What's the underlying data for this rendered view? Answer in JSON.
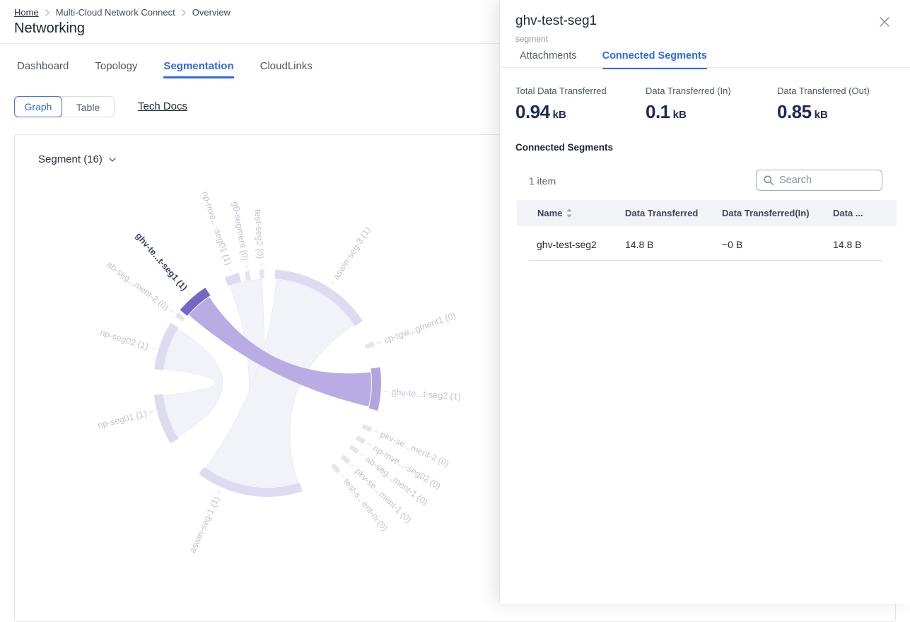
{
  "header": {
    "breadcrumb": [
      "Home",
      "Multi-Cloud Network Connect",
      "Overview"
    ],
    "title": "Networking"
  },
  "nav_tabs": [
    {
      "label": "Dashboard",
      "active": false
    },
    {
      "label": "Topology",
      "active": false
    },
    {
      "label": "Segmentation",
      "active": true
    },
    {
      "label": "CloudLinks",
      "active": false
    }
  ],
  "toolbar": {
    "graph_label": "Graph",
    "table_label": "Table",
    "tech_docs_label": "Tech Docs"
  },
  "chart_card": {
    "dropdown_label": "Segment (16)"
  },
  "chart_data": {
    "type": "chord",
    "title": "Segment (16)",
    "segment_count": 16,
    "center": [
      378,
      357
    ],
    "radius_inner": 148,
    "radius_outer": 161,
    "radius_tick_in": 165,
    "radius_tick_out": 172,
    "radius_label": 176,
    "colors": {
      "highlight_arc": "#7468c5",
      "connected_arc": "#b2a5de",
      "normal_arc": "#dedbf1",
      "tiny_arc": "#e6e4f4",
      "ribbon_active": "#b9ace4",
      "ribbon_faint": "#f2f2f9",
      "ribbon_faint_edge": "#e9e8f3",
      "label": "#bfc3d4",
      "label_highlight": "#3a4168",
      "tick": "#dfe1ec"
    },
    "segments": [
      {
        "label": "ghv-te...t-seg1 (1)",
        "angle": 131,
        "arc": [
          123,
          140
        ],
        "style": "highlight"
      },
      {
        "label": "np-mve...-seg01 (1)",
        "angle": 108,
        "arc": [
          104.5,
          112
        ],
        "style": "normal"
      },
      {
        "label": "g0-segment (0)",
        "angle": 100,
        "arc": [
          99,
          101.5
        ],
        "style": "tiny"
      },
      {
        "label": "test-seg2 (0)",
        "angle": 93,
        "arc": [
          91.5,
          94
        ],
        "style": "tiny"
      },
      {
        "label": "aswin-seg-3 (1)",
        "angle": 57,
        "arc": [
          33,
          86
        ],
        "style": "normal"
      },
      {
        "label": "cp-tgw...gment1 (0)",
        "angle": 20,
        "arc": [
          19,
          21.5
        ],
        "style": "tiny"
      },
      {
        "label": "ghv-te...t-seg2 (1)",
        "angle": -4,
        "arc": [
          -14,
          8
        ],
        "style": "connected"
      },
      {
        "label": "pkv-se...ment-2 (0)",
        "angle": -24,
        "arc": [
          -25.5,
          -23
        ],
        "style": "tiny"
      },
      {
        "label": "np-mve...-seg02 (0)",
        "angle": -31,
        "arc": [
          -32.5,
          -30
        ],
        "style": "tiny"
      },
      {
        "label": "ab-seg...ment-1 (0)",
        "angle": -37,
        "arc": [
          -38.5,
          -36
        ],
        "style": "tiny"
      },
      {
        "label": "pkv-se...ment-1 (0)",
        "angle": -44,
        "arc": [
          -45.5,
          -43
        ],
        "style": "tiny"
      },
      {
        "label": "test-s...ent-ni (0)",
        "angle": -51,
        "arc": [
          -52.5,
          -50
        ],
        "style": "tiny"
      },
      {
        "label": "aswin-seg-1 (1)",
        "angle": 246,
        "arc": [
          233,
          288
        ],
        "style": "normal"
      },
      {
        "label": "np-seg01 (1)",
        "angle": 194,
        "arc": [
          186,
          212
        ],
        "style": "normal"
      },
      {
        "label": "np-seg02 (1)",
        "angle": 163,
        "arc": [
          148,
          173
        ],
        "style": "normal"
      },
      {
        "label": "ab-seg...ment-2 (0)",
        "angle": 143,
        "arc": [
          141.5,
          144
        ],
        "style": "tiny"
      }
    ],
    "ribbons": [
      {
        "source": [
          93,
          111
        ],
        "target": [
          250,
          268
        ],
        "style": "faint"
      },
      {
        "source": [
          34,
          85
        ],
        "target": [
          234,
          287
        ],
        "style": "faint"
      },
      {
        "source": [
          149,
          172
        ],
        "target": [
          187,
          211
        ],
        "style": "faint"
      },
      {
        "source": [
          124,
          139
        ],
        "target": [
          -13,
          6
        ],
        "style": "active"
      }
    ]
  },
  "panel": {
    "title": "ghv-test-seg1",
    "subtitle": "segment",
    "tabs": [
      {
        "label": "Attachments",
        "active": false
      },
      {
        "label": "Connected Segments",
        "active": true
      }
    ],
    "stats": [
      {
        "label": "Total Data Transferred",
        "value": "0.94",
        "unit": "kB"
      },
      {
        "label": "Data Transferred (In)",
        "value": "0.1",
        "unit": "kB"
      },
      {
        "label": "Data Transferred (Out)",
        "value": "0.85",
        "unit": "kB"
      }
    ],
    "section_title": "Connected Segments",
    "item_count": "1 item",
    "search_placeholder": "Search",
    "table": {
      "columns": [
        "Name",
        "Data Transferred",
        "Data Transferred(In)",
        "Data ..."
      ],
      "rows": [
        {
          "name": "ghv-test-seg2",
          "data_transferred": "14.8 B",
          "data_in": "~0 B",
          "data_out": "14.8 B"
        }
      ]
    }
  },
  "colors": {
    "accent_blue": "#2f6ae4",
    "value_navy": "#1d2a57"
  }
}
